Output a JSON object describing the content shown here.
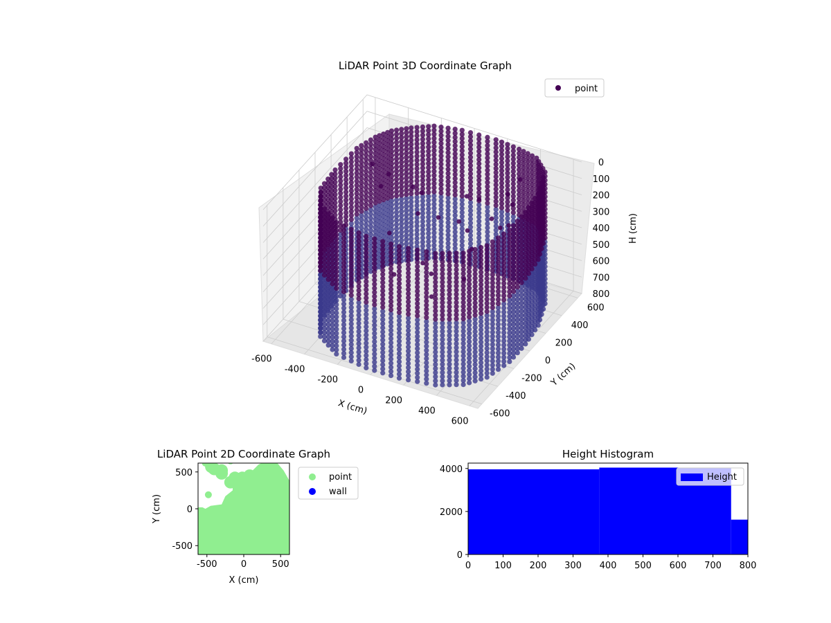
{
  "colors": {
    "point3d_top": "#440154",
    "point3d_bottom": "#3b3a8c",
    "point2d": "#90ee90",
    "wall": "#0000ff",
    "hist": "#0000ff",
    "pane": "#f2f2f2",
    "grid": "#cccccc"
  },
  "chart_data": [
    {
      "type": "scatter3d",
      "title": "LiDAR Point 3D Coordinate Graph",
      "xlabel": "X (cm)",
      "ylabel": "Y (cm)",
      "zlabel": "H (cm)",
      "xlim": [
        -650,
        650
      ],
      "ylim": [
        -650,
        650
      ],
      "zlim": [
        800,
        0
      ],
      "x_ticks": [
        -600,
        -400,
        -200,
        0,
        200,
        400,
        600
      ],
      "y_ticks": [
        -600,
        -400,
        -200,
        0,
        200,
        400,
        600
      ],
      "z_ticks": [
        0,
        100,
        200,
        300,
        400,
        500,
        600,
        700,
        800
      ],
      "grid": true,
      "legend": {
        "placement": "top-right",
        "entries": [
          {
            "label": "point",
            "color": "#440154"
          }
        ]
      },
      "series": [
        {
          "name": "point",
          "description_shape": "closed ring of wall points spanning height 0-800 around room boundary",
          "wall_outline": [
            [
              -480,
              -100
            ],
            [
              -470,
              150
            ],
            [
              -430,
              300
            ],
            [
              -380,
              400
            ],
            [
              -300,
              480
            ],
            [
              -200,
              560
            ],
            [
              -50,
              600
            ],
            [
              150,
              610
            ],
            [
              300,
              590
            ],
            [
              420,
              560
            ],
            [
              520,
              460
            ],
            [
              580,
              250
            ],
            [
              600,
              50
            ],
            [
              600,
              -150
            ],
            [
              560,
              -350
            ],
            [
              480,
              -480
            ],
            [
              350,
              -560
            ],
            [
              150,
              -600
            ],
            [
              -50,
              -600
            ],
            [
              -250,
              -560
            ],
            [
              -400,
              -450
            ],
            [
              -470,
              -300
            ]
          ],
          "wall_height": [
            0,
            800
          ],
          "interior_points": [
            [
              -100,
              150,
              280
            ],
            [
              0,
              200,
              300
            ],
            [
              100,
              250,
              320
            ],
            [
              200,
              150,
              290
            ],
            [
              150,
              400,
              250
            ],
            [
              250,
              350,
              310
            ],
            [
              300,
              450,
              200
            ],
            [
              350,
              250,
              280
            ],
            [
              -250,
              400,
              300
            ],
            [
              -350,
              300,
              200
            ],
            [
              -200,
              0,
              350
            ],
            [
              50,
              -100,
              400
            ],
            [
              150,
              -200,
              380
            ],
            [
              -300,
              100,
              150
            ],
            [
              250,
              100,
              360
            ],
            [
              400,
              300,
              150
            ],
            [
              450,
              150,
              180
            ],
            [
              -150,
              300,
              250
            ],
            [
              100,
              350,
              220
            ],
            [
              300,
              -100,
              420
            ],
            [
              -50,
              -250,
              420
            ],
            [
              200,
              -300,
              450
            ],
            [
              -400,
              200,
              100
            ],
            [
              350,
              500,
              120
            ]
          ]
        }
      ]
    },
    {
      "type": "scatter",
      "title": "LiDAR Point 2D Coordinate Graph",
      "xlabel": "X (cm)",
      "ylabel": "Y (cm)",
      "xlim": [
        -620,
        620
      ],
      "ylim": [
        -620,
        620
      ],
      "x_ticks": [
        -500,
        0,
        500
      ],
      "y_ticks": [
        -500,
        0,
        500
      ],
      "legend": {
        "placement": "outside-right",
        "entries": [
          {
            "label": "point",
            "color": "#90ee90"
          },
          {
            "label": "wall",
            "color": "#0000ff"
          }
        ]
      },
      "series": [
        {
          "name": "point",
          "filled_region": [
            [
              -620,
              20
            ],
            [
              -560,
              20
            ],
            [
              -520,
              0
            ],
            [
              -450,
              40
            ],
            [
              -300,
              60
            ],
            [
              -250,
              170
            ],
            [
              -150,
              250
            ],
            [
              -150,
              380
            ],
            [
              -90,
              470
            ],
            [
              20,
              480
            ],
            [
              120,
              520
            ],
            [
              200,
              600
            ],
            [
              300,
              650
            ],
            [
              430,
              650
            ],
            [
              540,
              520
            ],
            [
              620,
              380
            ],
            [
              620,
              -620
            ],
            [
              -620,
              -620
            ]
          ],
          "blobs": [
            [
              -440,
              570
            ],
            [
              -400,
              540
            ],
            [
              -300,
              520
            ],
            [
              -300,
              480
            ],
            [
              -180,
              360
            ],
            [
              -120,
              420
            ],
            [
              -20,
              420
            ],
            [
              80,
              450
            ]
          ],
          "outliers": [
            [
              -480,
              190
            ],
            [
              -520,
              620
            ],
            [
              -180,
              650
            ]
          ]
        },
        {
          "name": "wall",
          "points": []
        }
      ]
    },
    {
      "type": "bar",
      "title": "Height Histogram",
      "xlabel": "",
      "ylabel": "",
      "xlim": [
        0,
        800
      ],
      "ylim": [
        0,
        4250
      ],
      "x_ticks": [
        0,
        100,
        200,
        300,
        400,
        500,
        600,
        700,
        800
      ],
      "y_ticks": [
        0,
        2000,
        4000
      ],
      "legend": {
        "placement": "top-right",
        "entries": [
          {
            "label": "Height",
            "color": "#0000ff"
          }
        ]
      },
      "bins": [
        {
          "x0": 0,
          "x1": 375,
          "count": 3960
        },
        {
          "x0": 375,
          "x1": 752,
          "count": 4040
        },
        {
          "x0": 752,
          "x1": 800,
          "count": 1620
        }
      ]
    }
  ]
}
